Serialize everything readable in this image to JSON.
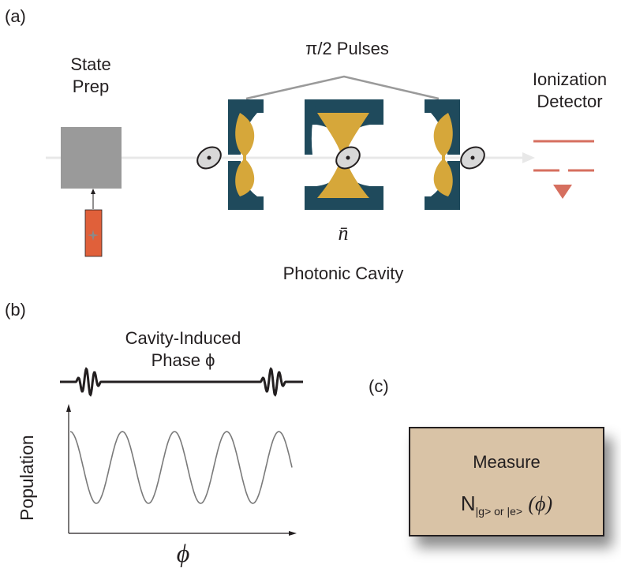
{
  "panels": {
    "a": {
      "label": "(a)",
      "state_prep": {
        "line1": "State",
        "line2": "Prep"
      },
      "pulses_label": "π/2 Pulses",
      "detector": {
        "line1": "Ionization",
        "line2": "Detector"
      },
      "nbar": "n̄",
      "cavity_label": "Photonic Cavity"
    },
    "b": {
      "label": "(b)",
      "phase_line1": "Cavity-Induced",
      "phase_line2": "Phase ϕ",
      "ylabel": "Population",
      "xlabel": "ϕ"
    },
    "c": {
      "label": "(c)",
      "measure_title": "Measure",
      "measure_N": "N",
      "measure_sub": "|g> or |e>",
      "measure_arg": "(ϕ)"
    }
  },
  "colors": {
    "cavity_dark": "#1f4a5c",
    "field_gold": "#d6a73a",
    "laser_red": "#e0603a",
    "detector_red": "#d66f5f",
    "prep_gray": "#9a9a9a",
    "measure_bg": "#d9c3a6"
  },
  "chart_data": {
    "type": "line",
    "series": [
      {
        "values": [
          1,
          0,
          1,
          0,
          1,
          0,
          1,
          0,
          1,
          0
        ]
      }
    ],
    "cycles": 4.25,
    "xlabel": "ϕ",
    "ylabel": "Population",
    "grid": false
  }
}
